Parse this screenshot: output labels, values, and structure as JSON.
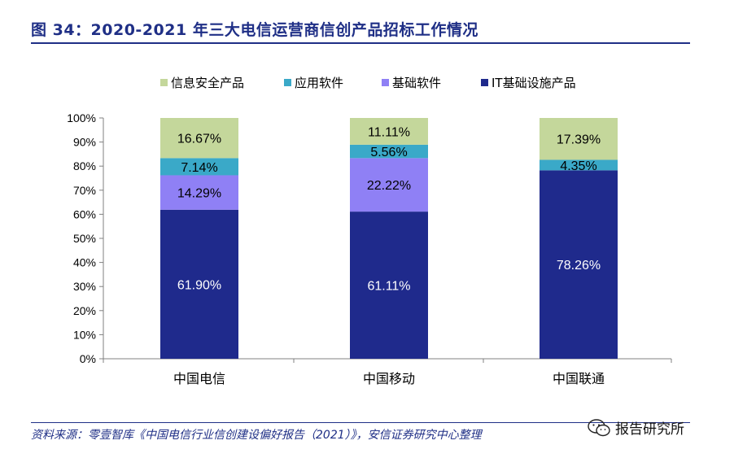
{
  "title": "图 34：2020-2021 年三大电信运营商信创产品招标工作情况",
  "source": "资料来源：零壹智库《中国电信行业信创建设偏好报告（2021）》，安信证券研究中心整理",
  "watermark": {
    "text": "报告研究所",
    "icon": "wechat-icon"
  },
  "chart_data": {
    "type": "bar",
    "stacked": true,
    "categories": [
      "中国电信",
      "中国移动",
      "中国联通"
    ],
    "series": [
      {
        "name": "IT基础设施产品",
        "color": "#1f2a8c",
        "values": [
          61.9,
          61.11,
          78.26
        ],
        "labels": [
          "61.90%",
          "61.11%",
          "78.26%"
        ],
        "label_color": "#ffffff"
      },
      {
        "name": "基础软件",
        "color": "#8f80f5",
        "values": [
          14.29,
          22.22,
          0
        ],
        "labels": [
          "14.29%",
          "22.22%",
          ""
        ],
        "label_color": "#000000"
      },
      {
        "name": "应用软件",
        "color": "#3aa9c8",
        "values": [
          7.14,
          5.56,
          4.35
        ],
        "labels": [
          "7.14%",
          "5.56%",
          "4.35%"
        ],
        "label_color": "#000000"
      },
      {
        "name": "信息安全产品",
        "color": "#c4d79b",
        "values": [
          16.67,
          11.11,
          17.39
        ],
        "labels": [
          "16.67%",
          "11.11%",
          "17.39%"
        ],
        "label_color": "#000000"
      }
    ],
    "legend_order": [
      "信息安全产品",
      "应用软件",
      "基础软件",
      "IT基础设施产品"
    ],
    "legend_position": "top",
    "ylim": [
      0,
      100
    ],
    "yticks": [
      "0%",
      "10%",
      "20%",
      "30%",
      "40%",
      "50%",
      "60%",
      "70%",
      "80%",
      "90%",
      "100%"
    ],
    "grid": false
  }
}
